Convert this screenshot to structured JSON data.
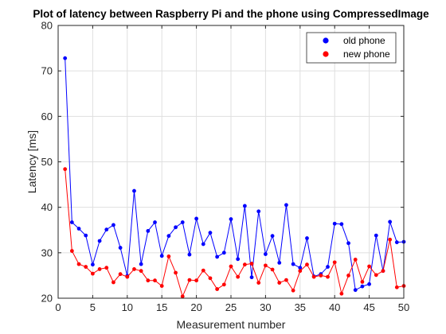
{
  "chart_data": {
    "type": "line",
    "title": "Plot of latency between Raspberry Pi and the phone using CompressedImage",
    "xlabel": "Measurement number",
    "ylabel": "Latency [ms]",
    "xlim": [
      0,
      50
    ],
    "ylim": [
      20,
      80
    ],
    "xticks": [
      0,
      5,
      10,
      15,
      20,
      25,
      30,
      35,
      40,
      45,
      50
    ],
    "yticks": [
      20,
      30,
      40,
      50,
      60,
      70,
      80
    ],
    "grid": true,
    "legend_position": "top-right",
    "x": [
      1,
      2,
      3,
      4,
      5,
      6,
      7,
      8,
      9,
      10,
      11,
      12,
      13,
      14,
      15,
      16,
      17,
      18,
      19,
      20,
      21,
      22,
      23,
      24,
      25,
      26,
      27,
      28,
      29,
      30,
      31,
      32,
      33,
      34,
      35,
      36,
      37,
      38,
      39,
      40,
      41,
      42,
      43,
      44,
      45,
      46,
      47,
      48,
      49,
      50
    ],
    "series": [
      {
        "name": "old phone",
        "color": "#0000ff",
        "values": [
          72.8,
          36.7,
          35.3,
          33.8,
          27.4,
          32.6,
          35.1,
          36.1,
          31.1,
          24.9,
          43.6,
          27.5,
          34.8,
          36.7,
          29.3,
          33.7,
          35.6,
          36.7,
          29.6,
          37.5,
          31.9,
          34.4,
          29.1,
          30.0,
          37.4,
          28.6,
          40.3,
          24.6,
          39.1,
          29.7,
          33.7,
          27.8,
          40.5,
          27.5,
          26.7,
          33.2,
          24.8,
          25.3,
          26.9,
          36.4,
          36.3,
          32.1,
          21.8,
          22.6,
          23.1,
          33.8,
          26.0,
          36.8,
          32.3,
          32.4
        ]
      },
      {
        "name": "new phone",
        "color": "#ff0000",
        "values": [
          48.4,
          30.4,
          27.5,
          26.9,
          25.4,
          26.4,
          26.7,
          23.5,
          25.3,
          24.7,
          26.4,
          26.0,
          23.9,
          23.9,
          22.7,
          29.2,
          25.6,
          20.4,
          24.0,
          23.9,
          26.1,
          24.4,
          22.0,
          23.0,
          27.0,
          24.7,
          27.4,
          27.6,
          23.4,
          27.2,
          26.3,
          23.4,
          24.0,
          21.7,
          26.0,
          27.4,
          24.7,
          25.0,
          24.7,
          27.9,
          21.0,
          25.0,
          28.5,
          23.6,
          27.0,
          25.1,
          26.0,
          32.9,
          22.4,
          22.7
        ]
      }
    ]
  }
}
